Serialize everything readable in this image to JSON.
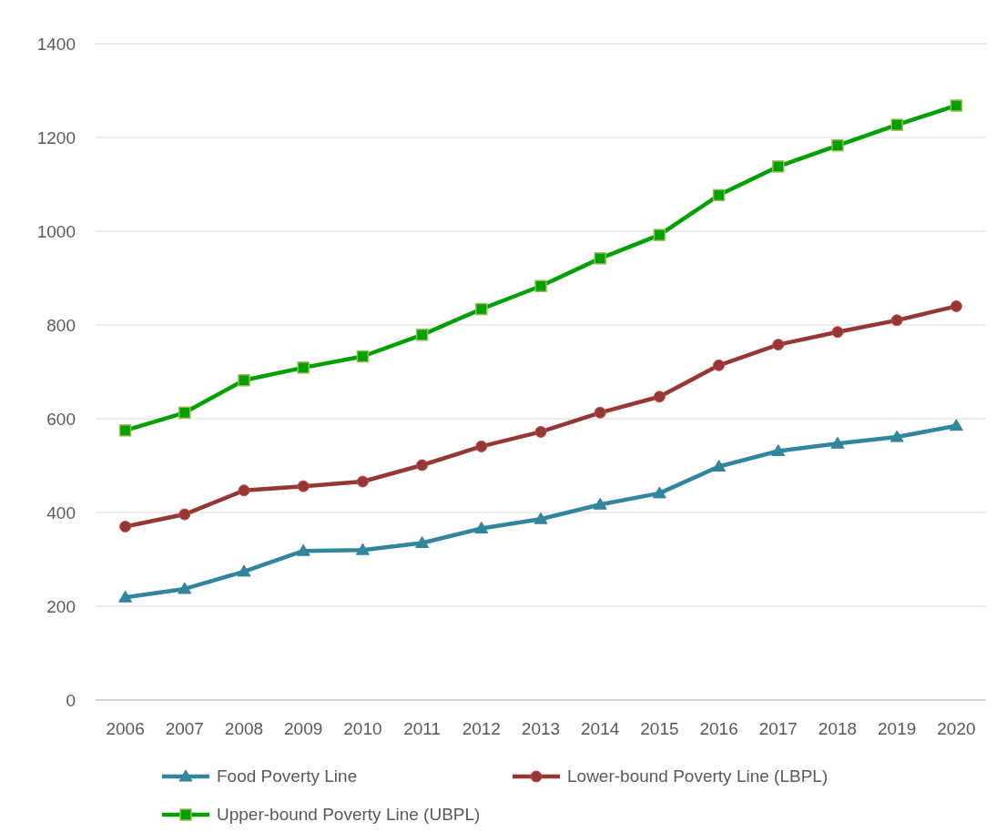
{
  "chart_data": {
    "type": "line",
    "categories": [
      "2006",
      "2007",
      "2008",
      "2009",
      "2010",
      "2011",
      "2012",
      "2013",
      "2014",
      "2015",
      "2016",
      "2017",
      "2018",
      "2019",
      "2020"
    ],
    "series": [
      {
        "name": "Food Poverty Line",
        "color": "#31859c",
        "marker": "triangle",
        "values": [
          219,
          237,
          274,
          318,
          320,
          335,
          366,
          386,
          417,
          441,
          498,
          531,
          547,
          561,
          585
        ]
      },
      {
        "name": "Lower-bound Poverty Line (LBPL)",
        "color": "#953735",
        "marker": "circle",
        "values": [
          370,
          396,
          447,
          456,
          466,
          501,
          541,
          572,
          613,
          647,
          714,
          758,
          785,
          810,
          840
        ]
      },
      {
        "name": "Upper-bound Poverty Line (UBPL)",
        "color": "#00a000",
        "marker": "square",
        "values": [
          575,
          613,
          682,
          709,
          733,
          779,
          834,
          883,
          942,
          992,
          1077,
          1138,
          1183,
          1227,
          1268
        ]
      }
    ],
    "ylim": [
      0,
      1400
    ],
    "yticks": [
      0,
      200,
      400,
      600,
      800,
      1000,
      1200,
      1400
    ],
    "grid": "y",
    "legend": "bottom",
    "line_style": "solid"
  }
}
